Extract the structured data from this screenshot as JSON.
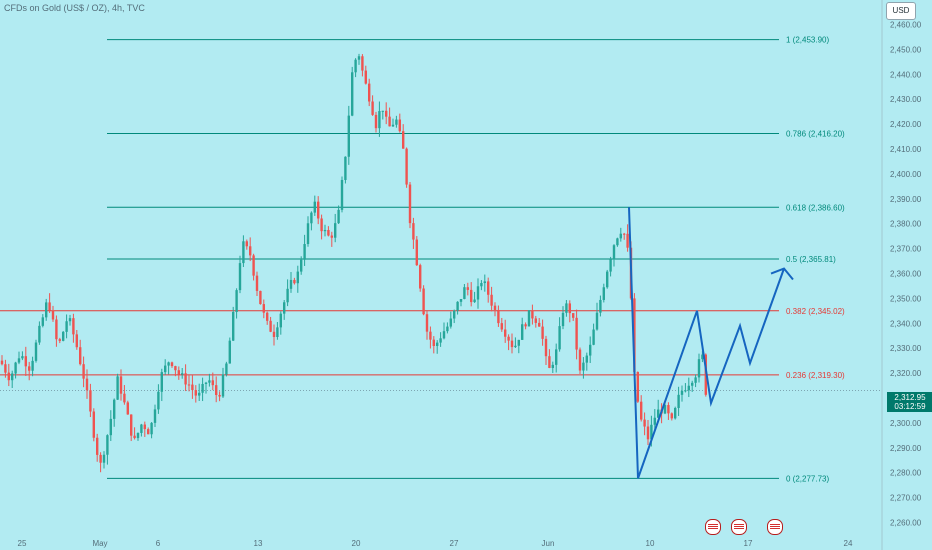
{
  "header": {
    "title": "CFDs on Gold (US$ / OZ), 4h, TVC",
    "currency_button": "USD"
  },
  "price_badge": {
    "price": "2,312.95",
    "countdown": "03:12:59"
  },
  "colors": {
    "background": "#b2ebf2",
    "up": "#26a69a",
    "down": "#ef5350",
    "projection": "#1565c0",
    "fib_green": "#00897b",
    "fib_red": "#e53935"
  },
  "chart_data": {
    "type": "candlestick",
    "ylim": [
      2255,
      2465
    ],
    "y_ticks": [
      2260,
      2270,
      2280,
      2290,
      2300,
      2310,
      2320,
      2330,
      2340,
      2350,
      2360,
      2370,
      2380,
      2390,
      2400,
      2410,
      2420,
      2430,
      2440,
      2450,
      2460
    ],
    "y_tick_labels": [
      "2,260.00",
      "2,270.00",
      "2,280.00",
      "2,290.00",
      "2,300.00",
      "2,310.00",
      "2,320.00",
      "2,330.00",
      "2,340.00",
      "2,350.00",
      "2,360.00",
      "2,370.00",
      "2,380.00",
      "2,390.00",
      "2,400.00",
      "2,410.00",
      "2,420.00",
      "2,430.00",
      "2,440.00",
      "2,450.00",
      "2,460.00"
    ],
    "x_labels": [
      "25",
      "May",
      "6",
      "13",
      "20",
      "27",
      "Jun",
      "10",
      "17",
      "24"
    ],
    "fib_levels": [
      {
        "ratio": "1",
        "value": 2453.9,
        "label": "1 (2,453.90)",
        "color": "#00897b"
      },
      {
        "ratio": "0.786",
        "value": 2416.2,
        "label": "0.786 (2,416.20)",
        "color": "#00897b"
      },
      {
        "ratio": "0.618",
        "value": 2386.6,
        "label": "0.618 (2,386.60)",
        "color": "#00897b"
      },
      {
        "ratio": "0.5",
        "value": 2365.81,
        "label": "0.5 (2,365.81)",
        "color": "#00897b"
      },
      {
        "ratio": "0.382",
        "value": 2345.02,
        "label": "0.382 (2,345.02)",
        "color": "#e53935"
      },
      {
        "ratio": "0.236",
        "value": 2319.3,
        "label": "0.236 (2,319.30)",
        "color": "#e53935"
      },
      {
        "ratio": "0",
        "value": 2277.73,
        "label": "0 (2,277.73)",
        "color": "#00897b"
      }
    ],
    "current_price": 2312.95,
    "price_path": [
      [
        0,
        2325
      ],
      [
        10,
        2318
      ],
      [
        20,
        2328
      ],
      [
        30,
        2322
      ],
      [
        40,
        2338
      ],
      [
        48,
        2350
      ],
      [
        58,
        2330
      ],
      [
        68,
        2343
      ],
      [
        76,
        2332
      ],
      [
        84,
        2318
      ],
      [
        92,
        2300
      ],
      [
        100,
        2282
      ],
      [
        110,
        2300
      ],
      [
        118,
        2318
      ],
      [
        126,
        2305
      ],
      [
        134,
        2292
      ],
      [
        142,
        2300
      ],
      [
        150,
        2296
      ],
      [
        160,
        2318
      ],
      [
        170,
        2326
      ],
      [
        178,
        2320
      ],
      [
        188,
        2316
      ],
      [
        198,
        2310
      ],
      [
        208,
        2318
      ],
      [
        218,
        2310
      ],
      [
        226,
        2322
      ],
      [
        234,
        2345
      ],
      [
        242,
        2372
      ],
      [
        250,
        2368
      ],
      [
        258,
        2352
      ],
      [
        266,
        2340
      ],
      [
        274,
        2336
      ],
      [
        282,
        2346
      ],
      [
        290,
        2355
      ],
      [
        298,
        2360
      ],
      [
        306,
        2376
      ],
      [
        314,
        2388
      ],
      [
        322,
        2378
      ],
      [
        330,
        2374
      ],
      [
        338,
        2382
      ],
      [
        346,
        2410
      ],
      [
        352,
        2440
      ],
      [
        358,
        2450
      ],
      [
        364,
        2438
      ],
      [
        370,
        2430
      ],
      [
        376,
        2420
      ],
      [
        382,
        2428
      ],
      [
        388,
        2418
      ],
      [
        396,
        2422
      ],
      [
        404,
        2408
      ],
      [
        410,
        2382
      ],
      [
        418,
        2362
      ],
      [
        426,
        2338
      ],
      [
        434,
        2330
      ],
      [
        442,
        2336
      ],
      [
        450,
        2340
      ],
      [
        458,
        2348
      ],
      [
        466,
        2355
      ],
      [
        474,
        2348
      ],
      [
        482,
        2358
      ],
      [
        490,
        2350
      ],
      [
        498,
        2342
      ],
      [
        506,
        2336
      ],
      [
        514,
        2330
      ],
      [
        522,
        2338
      ],
      [
        530,
        2344
      ],
      [
        540,
        2340
      ],
      [
        548,
        2320
      ],
      [
        556,
        2328
      ],
      [
        564,
        2348
      ],
      [
        572,
        2344
      ],
      [
        580,
        2320
      ],
      [
        590,
        2330
      ],
      [
        598,
        2345
      ],
      [
        606,
        2360
      ],
      [
        614,
        2372
      ],
      [
        620,
        2378
      ],
      [
        626,
        2375
      ],
      [
        630,
        2360
      ],
      [
        634,
        2320
      ],
      [
        640,
        2302
      ],
      [
        648,
        2294
      ],
      [
        656,
        2304
      ],
      [
        664,
        2306
      ],
      [
        672,
        2300
      ],
      [
        680,
        2312
      ],
      [
        688,
        2316
      ],
      [
        696,
        2320
      ],
      [
        702,
        2328
      ],
      [
        706,
        2312
      ],
      [
        710,
        2312
      ]
    ],
    "projection": [
      {
        "date_index": 0,
        "value": 2386.6
      },
      {
        "date_index": 1,
        "value": 2277.73
      },
      {
        "date_index": 2,
        "value": 2345.02
      },
      {
        "date_index": 3,
        "value": 2308.0
      },
      {
        "date_index": 4,
        "value": 2339.0
      },
      {
        "date_index": 5,
        "value": 2324.0
      },
      {
        "date_index": 6,
        "value": 2362.0
      }
    ]
  }
}
